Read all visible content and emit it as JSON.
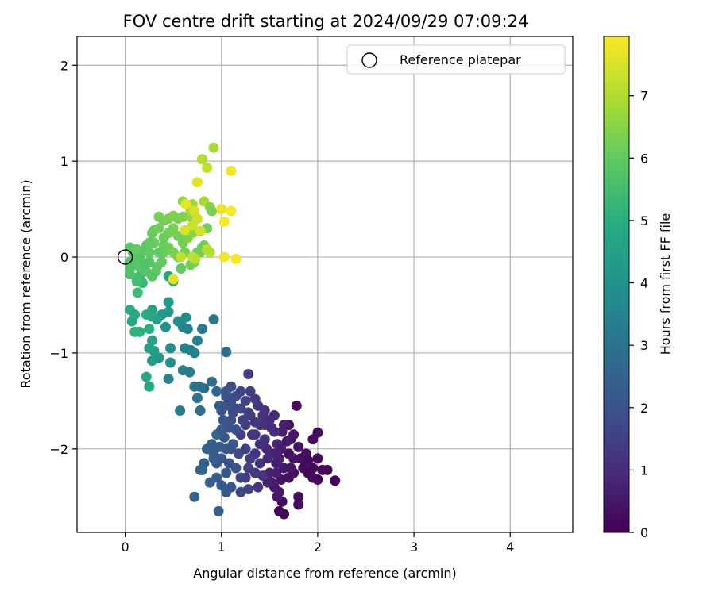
{
  "chart_data": {
    "type": "scatter",
    "title": "FOV centre drift starting at 2024/09/29 07:09:24",
    "xlabel": "Angular distance from reference (arcmin)",
    "ylabel": "Rotation from reference (arcmin)",
    "xlim": [
      -0.5,
      4.65
    ],
    "ylim": [
      -2.87,
      2.3
    ],
    "xticks": [
      0,
      1,
      2,
      3,
      4
    ],
    "yticks": [
      -2,
      -1,
      0,
      1,
      2
    ],
    "grid": true,
    "legend": {
      "placement": "top-right",
      "entries": [
        "Reference platepar"
      ]
    },
    "reference_point": {
      "x": 0,
      "y": 0
    },
    "colorbar": {
      "label": "Hours from first FF file",
      "range": [
        0,
        7.95
      ],
      "ticks": [
        0,
        1,
        2,
        3,
        4,
        5,
        6,
        7
      ],
      "colormap": "viridis"
    },
    "points": [
      [
        1.6,
        -2.65,
        0.1
      ],
      [
        1.63,
        -2.55,
        0.2
      ],
      [
        1.65,
        -2.68,
        0.15
      ],
      [
        1.8,
        -2.5,
        0.3
      ],
      [
        1.8,
        -2.58,
        0.25
      ],
      [
        1.55,
        -2.4,
        0.5
      ],
      [
        1.52,
        -2.35,
        0.6
      ],
      [
        1.62,
        -2.32,
        0.4
      ],
      [
        1.7,
        -2.3,
        0.35
      ],
      [
        1.75,
        -2.25,
        0.3
      ],
      [
        1.85,
        -2.2,
        0.2
      ],
      [
        1.9,
        -2.25,
        0.1
      ],
      [
        1.95,
        -2.2,
        0.15
      ],
      [
        2.0,
        -2.32,
        0.05
      ],
      [
        2.05,
        -2.22,
        0.1
      ],
      [
        2.1,
        -2.22,
        0.12
      ],
      [
        2.18,
        -2.33,
        0.05
      ],
      [
        1.95,
        -2.3,
        0.2
      ],
      [
        2.0,
        -2.1,
        0.15
      ],
      [
        2.0,
        -1.83,
        0.25
      ],
      [
        1.95,
        -1.9,
        0.3
      ],
      [
        1.8,
        -1.98,
        0.4
      ],
      [
        1.72,
        -1.9,
        0.5
      ],
      [
        1.7,
        -2.05,
        0.3
      ],
      [
        1.88,
        -2.05,
        0.35
      ],
      [
        1.78,
        -1.55,
        0.2
      ],
      [
        1.7,
        -1.75,
        0.4
      ],
      [
        1.63,
        -1.82,
        0.6
      ],
      [
        1.72,
        -2.2,
        0.5
      ],
      [
        1.6,
        -2.1,
        0.7
      ],
      [
        1.55,
        -2.05,
        0.8
      ],
      [
        1.47,
        -2.0,
        0.9
      ],
      [
        1.5,
        -2.25,
        0.75
      ],
      [
        1.57,
        -2.25,
        0.7
      ],
      [
        1.6,
        -2.45,
        0.6
      ],
      [
        1.48,
        -2.35,
        0.75
      ],
      [
        1.58,
        -2.5,
        0.55
      ],
      [
        1.55,
        -1.82,
        1.0
      ],
      [
        1.45,
        -1.9,
        1.1
      ],
      [
        1.4,
        -1.75,
        1.2
      ],
      [
        1.3,
        -1.65,
        1.3
      ],
      [
        1.25,
        -1.75,
        1.4
      ],
      [
        1.2,
        -1.85,
        1.5
      ],
      [
        1.35,
        -1.85,
        1.2
      ],
      [
        1.4,
        -1.95,
        1.1
      ],
      [
        1.5,
        -1.7,
        1.0
      ],
      [
        1.45,
        -1.6,
        1.1
      ],
      [
        1.38,
        -1.55,
        1.3
      ],
      [
        1.3,
        -1.4,
        1.5
      ],
      [
        1.28,
        -1.22,
        1.4
      ],
      [
        1.25,
        -1.5,
        1.6
      ],
      [
        1.2,
        -1.58,
        1.7
      ],
      [
        1.15,
        -1.45,
        1.8
      ],
      [
        1.1,
        -1.35,
        1.9
      ],
      [
        1.05,
        -1.45,
        2.0
      ],
      [
        1.0,
        -1.6,
        2.0
      ],
      [
        1.02,
        -1.7,
        2.1
      ],
      [
        1.1,
        -1.7,
        2.0
      ],
      [
        1.15,
        -1.8,
        1.9
      ],
      [
        1.12,
        -1.95,
        2.2
      ],
      [
        1.05,
        -2.0,
        2.1
      ],
      [
        0.98,
        -1.98,
        2.3
      ],
      [
        0.92,
        -2.05,
        2.2
      ],
      [
        0.85,
        -2.0,
        2.4
      ],
      [
        0.9,
        -1.95,
        2.3
      ],
      [
        0.82,
        -2.15,
        2.4
      ],
      [
        0.95,
        -2.15,
        2.2
      ],
      [
        1.0,
        -2.1,
        2.1
      ],
      [
        1.08,
        -2.15,
        2.0
      ],
      [
        1.18,
        -2.05,
        1.8
      ],
      [
        1.25,
        -2.0,
        1.6
      ],
      [
        1.3,
        -2.1,
        1.4
      ],
      [
        1.28,
        -2.2,
        1.5
      ],
      [
        1.2,
        -2.3,
        1.7
      ],
      [
        1.15,
        -2.2,
        1.9
      ],
      [
        1.05,
        -2.25,
        2.1
      ],
      [
        1.1,
        -2.4,
        2.0
      ],
      [
        1.05,
        -2.45,
        2.2
      ],
      [
        1.0,
        -2.38,
        2.3
      ],
      [
        0.95,
        -2.3,
        2.3
      ],
      [
        0.88,
        -2.35,
        2.4
      ],
      [
        0.8,
        -2.22,
        2.5
      ],
      [
        0.78,
        -2.22,
        2.6
      ],
      [
        0.72,
        -2.5,
        2.5
      ],
      [
        0.97,
        -2.65,
        2.4
      ],
      [
        1.2,
        -2.45,
        1.7
      ],
      [
        1.28,
        -2.42,
        1.5
      ],
      [
        1.38,
        -2.4,
        1.2
      ],
      [
        1.43,
        -2.28,
        1.1
      ],
      [
        1.4,
        -2.15,
        1.1
      ],
      [
        1.35,
        -2.25,
        1.3
      ],
      [
        1.25,
        -2.3,
        1.5
      ],
      [
        1.35,
        -2.05,
        1.3
      ],
      [
        1.48,
        -2.1,
        0.95
      ],
      [
        1.58,
        -1.95,
        0.85
      ],
      [
        1.62,
        -2.0,
        0.7
      ],
      [
        1.75,
        -1.85,
        0.45
      ],
      [
        1.55,
        -1.65,
        0.95
      ],
      [
        1.43,
        -1.65,
        1.15
      ],
      [
        1.35,
        -1.72,
        1.25
      ],
      [
        1.22,
        -1.7,
        1.55
      ],
      [
        1.12,
        -1.62,
        1.75
      ],
      [
        1.03,
        -1.88,
        2.1
      ],
      [
        0.95,
        -1.85,
        2.7
      ],
      [
        0.98,
        -1.55,
        2.2
      ],
      [
        1.05,
        -1.55,
        2.1
      ],
      [
        1.1,
        -1.5,
        1.9
      ],
      [
        1.2,
        -1.4,
        1.7
      ],
      [
        1.35,
        -1.48,
        1.4
      ],
      [
        1.45,
        -1.75,
        1.05
      ],
      [
        1.52,
        -1.78,
        0.95
      ],
      [
        1.65,
        -1.75,
        0.7
      ],
      [
        1.68,
        -1.92,
        0.55
      ],
      [
        1.82,
        -2.1,
        0.3
      ],
      [
        1.9,
        -2.12,
        0.2
      ],
      [
        1.75,
        -2.1,
        0.45
      ],
      [
        1.65,
        -2.2,
        0.5
      ],
      [
        1.57,
        -2.15,
        0.7
      ],
      [
        1.1,
        -2.0,
        2.0
      ],
      [
        0.92,
        -2.1,
        2.3
      ],
      [
        1.05,
        -1.4,
        2.1
      ],
      [
        1.15,
        -1.58,
        1.8
      ],
      [
        1.28,
        -1.62,
        1.5
      ],
      [
        1.32,
        -1.85,
        1.3
      ],
      [
        1.0,
        -1.8,
        2.2
      ],
      [
        1.08,
        -1.78,
        2.0
      ],
      [
        1.05,
        -0.99,
        2.9
      ],
      [
        0.92,
        -0.65,
        3.1
      ],
      [
        0.8,
        -0.75,
        3.2
      ],
      [
        0.75,
        -0.87,
        3.4
      ],
      [
        0.72,
        -1.0,
        3.4
      ],
      [
        0.68,
        -0.97,
        3.5
      ],
      [
        0.62,
        -0.95,
        3.6
      ],
      [
        0.6,
        -0.73,
        3.6
      ],
      [
        0.65,
        -0.75,
        3.5
      ],
      [
        0.63,
        -0.63,
        3.8
      ],
      [
        0.55,
        -0.67,
        3.8
      ],
      [
        0.6,
        -1.18,
        3.4
      ],
      [
        0.67,
        -1.2,
        3.3
      ],
      [
        0.72,
        -1.35,
        3.1
      ],
      [
        0.77,
        -1.35,
        3.0
      ],
      [
        0.75,
        -1.47,
        3.0
      ],
      [
        0.82,
        -1.37,
        2.9
      ],
      [
        0.9,
        -1.3,
        2.8
      ],
      [
        0.95,
        -1.4,
        2.7
      ],
      [
        0.78,
        -1.6,
        2.8
      ],
      [
        0.57,
        -1.6,
        3.3
      ],
      [
        0.45,
        -1.27,
        3.6
      ],
      [
        0.47,
        -0.95,
        3.8
      ],
      [
        0.42,
        -0.73,
        4.1
      ],
      [
        0.45,
        -0.57,
        4.2
      ],
      [
        0.45,
        -0.47,
        4.3
      ],
      [
        0.38,
        -0.6,
        4.3
      ],
      [
        0.33,
        -0.65,
        4.5
      ],
      [
        0.28,
        -0.55,
        4.6
      ],
      [
        0.28,
        -0.87,
        4.6
      ],
      [
        0.3,
        -0.98,
        4.4
      ],
      [
        0.28,
        -1.08,
        4.5
      ],
      [
        0.35,
        -1.05,
        4.3
      ],
      [
        0.22,
        -1.25,
        4.8
      ],
      [
        0.25,
        -1.35,
        4.7
      ],
      [
        0.25,
        -0.75,
        4.9
      ],
      [
        0.15,
        -0.78,
        5.0
      ],
      [
        0.1,
        -0.78,
        5.1
      ],
      [
        0.07,
        -0.67,
        4.8
      ],
      [
        0.05,
        -0.55,
        4.9
      ],
      [
        0.1,
        -0.6,
        4.8
      ],
      [
        0.22,
        -0.6,
        4.9
      ],
      [
        0.28,
        -0.62,
        4.7
      ],
      [
        0.25,
        -0.95,
        4.5
      ],
      [
        0.47,
        -1.1,
        3.9
      ],
      [
        0.5,
        -0.25,
        4.6
      ],
      [
        0.45,
        -0.2,
        4.7
      ],
      [
        0.13,
        -0.37,
        5.4
      ],
      [
        0.18,
        -0.27,
        5.3
      ],
      [
        0.12,
        -0.25,
        5.5
      ],
      [
        0.15,
        -0.2,
        5.5
      ],
      [
        0.05,
        -0.18,
        5.7
      ],
      [
        0.05,
        -0.12,
        5.7
      ],
      [
        0.05,
        -0.05,
        5.8
      ],
      [
        0.05,
        0.1,
        5.9
      ],
      [
        0.08,
        0.05,
        5.8
      ],
      [
        0.1,
        -0.05,
        5.9
      ],
      [
        0.12,
        0.02,
        6.0
      ],
      [
        0.15,
        -0.1,
        5.8
      ],
      [
        0.2,
        0.08,
        5.9
      ],
      [
        0.22,
        0.12,
        5.8
      ],
      [
        0.25,
        0.05,
        6.0
      ],
      [
        0.3,
        0.15,
        6.1
      ],
      [
        0.28,
        0.25,
        6.0
      ],
      [
        0.3,
        0.28,
        6.1
      ],
      [
        0.35,
        0.3,
        6.2
      ],
      [
        0.35,
        0.42,
        6.3
      ],
      [
        0.4,
        0.38,
        6.2
      ],
      [
        0.45,
        0.4,
        6.3
      ],
      [
        0.5,
        0.43,
        6.4
      ],
      [
        0.55,
        0.4,
        6.3
      ],
      [
        0.6,
        0.42,
        6.4
      ],
      [
        0.6,
        0.58,
        6.6
      ],
      [
        0.7,
        0.55,
        6.7
      ],
      [
        0.68,
        0.48,
        6.8
      ],
      [
        0.75,
        0.4,
        6.9
      ],
      [
        0.82,
        0.58,
        6.9
      ],
      [
        0.88,
        0.52,
        6.5
      ],
      [
        0.9,
        0.48,
        6.3
      ],
      [
        0.85,
        0.3,
        6.2
      ],
      [
        0.8,
        0.1,
        6.1
      ],
      [
        0.75,
        0.05,
        6.1
      ],
      [
        0.72,
        0.0,
        6.2
      ],
      [
        0.72,
        -0.05,
        6.3
      ],
      [
        0.68,
        -0.08,
        6.2
      ],
      [
        0.58,
        -0.12,
        6.0
      ],
      [
        0.55,
        0.0,
        6.2
      ],
      [
        0.5,
        0.05,
        6.3
      ],
      [
        0.45,
        0.1,
        6.2
      ],
      [
        0.4,
        0.05,
        6.1
      ],
      [
        0.38,
        -0.05,
        6.0
      ],
      [
        0.32,
        -0.15,
        5.9
      ],
      [
        0.28,
        -0.2,
        5.8
      ],
      [
        0.33,
        -0.1,
        5.9
      ],
      [
        0.25,
        -0.05,
        5.8
      ],
      [
        0.2,
        -0.08,
        5.7
      ],
      [
        0.15,
        0.0,
        5.8
      ],
      [
        0.12,
        0.08,
        6.0
      ],
      [
        0.25,
        0.15,
        6.0
      ],
      [
        0.4,
        0.2,
        6.1
      ],
      [
        0.45,
        0.25,
        6.2
      ],
      [
        0.5,
        0.3,
        6.3
      ],
      [
        0.55,
        0.22,
        6.2
      ],
      [
        0.6,
        0.15,
        6.2
      ],
      [
        0.65,
        0.2,
        6.4
      ],
      [
        0.7,
        0.25,
        6.5
      ],
      [
        0.62,
        0.05,
        6.3
      ],
      [
        0.78,
        0.05,
        6.2
      ],
      [
        0.82,
        0.12,
        6.1
      ],
      [
        0.7,
        0.4,
        6.6
      ],
      [
        0.4,
        0.12,
        6.1
      ],
      [
        0.35,
        0.05,
        6.0
      ],
      [
        0.22,
        -0.15,
        5.8
      ],
      [
        0.92,
        1.14,
        6.9
      ],
      [
        0.8,
        1.02,
        7.0
      ],
      [
        0.85,
        0.93,
        7.2
      ],
      [
        1.1,
        0.9,
        7.8
      ],
      [
        0.75,
        0.78,
        7.6
      ],
      [
        0.63,
        0.55,
        7.7
      ],
      [
        0.72,
        0.48,
        7.5
      ],
      [
        0.75,
        0.4,
        7.4
      ],
      [
        0.7,
        0.33,
        7.3
      ],
      [
        0.78,
        0.27,
        7.4
      ],
      [
        1.0,
        0.5,
        7.7
      ],
      [
        1.1,
        0.48,
        7.9
      ],
      [
        1.03,
        0.37,
        7.9
      ],
      [
        0.62,
        0.28,
        7.5
      ],
      [
        0.7,
        0.0,
        7.2
      ],
      [
        0.85,
        0.08,
        7.1
      ],
      [
        0.88,
        0.05,
        7.0
      ],
      [
        1.03,
        0.0,
        7.8
      ],
      [
        1.15,
        -0.02,
        7.9
      ],
      [
        0.5,
        -0.23,
        7.6
      ],
      [
        0.73,
        -0.02,
        7.1
      ],
      [
        0.58,
        0.0,
        7.2
      ]
    ]
  }
}
